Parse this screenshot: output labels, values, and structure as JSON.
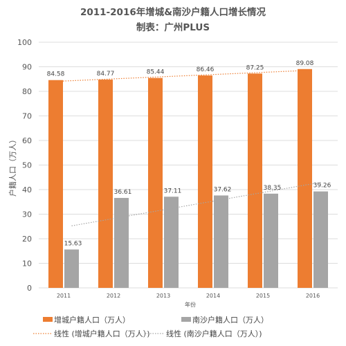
{
  "chart_data": {
    "type": "bar",
    "title": "2011-2016年增城&南沙户籍人口增长情况",
    "subtitle": "制表：广州PLUS",
    "xlabel": "年份",
    "ylabel": "户籍人口（万人）",
    "ylim": [
      0,
      100
    ],
    "yticks": [
      "0",
      "10",
      "20",
      "30",
      "40",
      "50",
      "60",
      "70",
      "80",
      "90",
      "100"
    ],
    "categories": [
      "2011",
      "2012",
      "2013",
      "2014",
      "2015",
      "2016"
    ],
    "grid": true,
    "legend_position": "bottom",
    "series": [
      {
        "name": "增城户籍人口（万人）",
        "values": [
          84.58,
          84.77,
          85.44,
          86.46,
          87.25,
          89.08
        ],
        "labels": [
          "84.58",
          "84.77",
          "85.44",
          "86.46",
          "87.25",
          "89.08"
        ],
        "color": "#ed7d31"
      },
      {
        "name": "南沙户籍人口（万人）",
        "values": [
          15.63,
          36.61,
          37.11,
          37.62,
          38.35,
          39.26
        ],
        "labels": [
          "15.63",
          "36.61",
          "37.11",
          "37.62",
          "38.35",
          "39.26"
        ],
        "color": "#a5a5a5"
      }
    ],
    "trendlines": [
      {
        "name": "线性 (增城户籍人口（万人）)",
        "series_index": 0,
        "type": "linear",
        "color": "#ed7d31"
      },
      {
        "name": "线性 (南沙户籍人口（万人）)",
        "series_index": 1,
        "type": "linear",
        "color": "#a5a5a5"
      }
    ]
  }
}
